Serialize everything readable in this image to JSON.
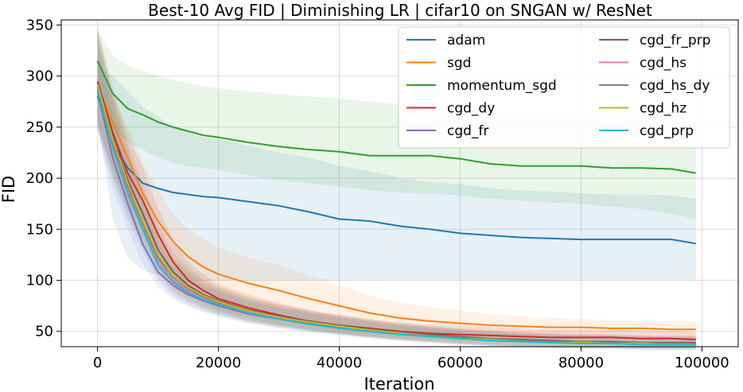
{
  "chart_data": {
    "type": "line",
    "title": "Best-10 Avg FID | Diminishing LR | cifar10 on SNGAN w/ ResNet",
    "xlabel": "Iteration",
    "ylabel": "FID",
    "xlim": [
      -6000,
      106000
    ],
    "ylim": [
      35,
      355
    ],
    "xticks": [
      0,
      20000,
      40000,
      60000,
      80000,
      100000
    ],
    "yticks": [
      50,
      100,
      150,
      200,
      250,
      300,
      350
    ],
    "grid": true,
    "legend": {
      "position": "top-right",
      "columns": 2
    },
    "x": [
      0,
      2500,
      5000,
      7500,
      10000,
      12500,
      15000,
      17500,
      20000,
      25000,
      30000,
      35000,
      40000,
      45000,
      50000,
      55000,
      60000,
      65000,
      70000,
      75000,
      80000,
      85000,
      90000,
      95000,
      99000
    ],
    "series": [
      {
        "name": "adam",
        "color": "#1f77b4",
        "values": [
          281,
          235,
          210,
          195,
          190,
          186,
          184,
          182,
          181,
          177,
          173,
          167,
          160,
          158,
          153,
          150,
          146,
          144,
          142,
          141,
          140,
          140,
          140,
          140,
          136
        ],
        "band_low": [
          258,
          160,
          122,
          110,
          105,
          102,
          100,
          100,
          100,
          100,
          100,
          100,
          100,
          100,
          100,
          100,
          100,
          100,
          100,
          100,
          100,
          100,
          100,
          100,
          100
        ],
        "band_high": [
          310,
          300,
          285,
          270,
          260,
          250,
          245,
          240,
          238,
          232,
          225,
          220,
          212,
          207,
          200,
          196,
          194,
          190,
          188,
          187,
          185,
          184,
          184,
          183,
          180
        ]
      },
      {
        "name": "sgd",
        "color": "#ff7f0e",
        "values": [
          290,
          255,
          220,
          185,
          158,
          138,
          123,
          113,
          106,
          97,
          90,
          82,
          75,
          68,
          63,
          60,
          58,
          56,
          55,
          54,
          54,
          53,
          53,
          52,
          52
        ],
        "band_low": [
          275,
          235,
          195,
          160,
          132,
          112,
          98,
          88,
          80,
          70,
          62,
          57,
          52,
          49,
          47,
          46,
          45,
          45,
          44,
          44,
          44,
          44,
          43,
          43,
          43
        ],
        "band_high": [
          305,
          280,
          250,
          215,
          188,
          165,
          150,
          140,
          132,
          122,
          115,
          105,
          95,
          85,
          78,
          74,
          70,
          67,
          65,
          63,
          62,
          61,
          60,
          60,
          60
        ]
      },
      {
        "name": "momentum_sgd",
        "color": "#2ca02c",
        "values": [
          315,
          283,
          268,
          262,
          255,
          250,
          246,
          242,
          240,
          235,
          231,
          228,
          226,
          222,
          222,
          222,
          219,
          214,
          212,
          212,
          212,
          210,
          210,
          209,
          205
        ],
        "band_low": [
          285,
          250,
          235,
          228,
          220,
          215,
          212,
          210,
          208,
          203,
          198,
          195,
          192,
          188,
          186,
          185,
          183,
          180,
          178,
          176,
          175,
          172,
          170,
          165,
          160
        ],
        "band_high": [
          345,
          320,
          310,
          305,
          300,
          296,
          293,
          290,
          288,
          285,
          282,
          280,
          278,
          275,
          272,
          270,
          268,
          266,
          264,
          262,
          262,
          260,
          258,
          255,
          252
        ]
      },
      {
        "name": "cgd_dy",
        "color": "#d62728",
        "values": [
          295,
          245,
          205,
          178,
          145,
          118,
          100,
          90,
          82,
          73,
          66,
          60,
          56,
          53,
          50,
          48,
          47,
          46,
          45,
          44,
          44,
          44,
          43,
          43,
          42
        ]
      },
      {
        "name": "cgd_fr",
        "color": "#9467bd",
        "values": [
          285,
          220,
          175,
          135,
          108,
          95,
          86,
          80,
          75,
          67,
          62,
          58,
          54,
          51,
          48,
          46,
          44,
          42,
          41,
          40,
          39,
          39,
          38,
          38,
          38
        ]
      },
      {
        "name": "cgd_fr_prp",
        "color": "#8c564b",
        "values": [
          293,
          240,
          198,
          165,
          130,
          108,
          95,
          86,
          80,
          71,
          65,
          60,
          56,
          52,
          49,
          47,
          45,
          43,
          42,
          41,
          40,
          40,
          39,
          39,
          39
        ]
      },
      {
        "name": "cgd_hs",
        "color": "#e377c2",
        "values": [
          288,
          232,
          188,
          152,
          118,
          100,
          90,
          83,
          77,
          69,
          63,
          59,
          55,
          51,
          48,
          46,
          44,
          42,
          41,
          40,
          39,
          39,
          38,
          38,
          38
        ]
      },
      {
        "name": "cgd_hs_dy",
        "color": "#7f7f7f",
        "values": [
          290,
          236,
          192,
          156,
          122,
          103,
          92,
          84,
          78,
          70,
          64,
          59,
          55,
          52,
          49,
          46,
          44,
          43,
          41,
          40,
          40,
          39,
          39,
          38,
          38
        ]
      },
      {
        "name": "cgd_hz",
        "color": "#bcbd22",
        "values": [
          292,
          238,
          195,
          158,
          125,
          104,
          93,
          85,
          79,
          70,
          64,
          59,
          55,
          51,
          48,
          45,
          43,
          42,
          40,
          39,
          39,
          38,
          38,
          37,
          37
        ]
      },
      {
        "name": "cgd_prp",
        "color": "#17becf",
        "values": [
          287,
          230,
          185,
          150,
          115,
          98,
          88,
          81,
          76,
          68,
          62,
          57,
          53,
          50,
          47,
          45,
          43,
          41,
          40,
          39,
          38,
          38,
          37,
          37,
          37
        ]
      }
    ]
  }
}
